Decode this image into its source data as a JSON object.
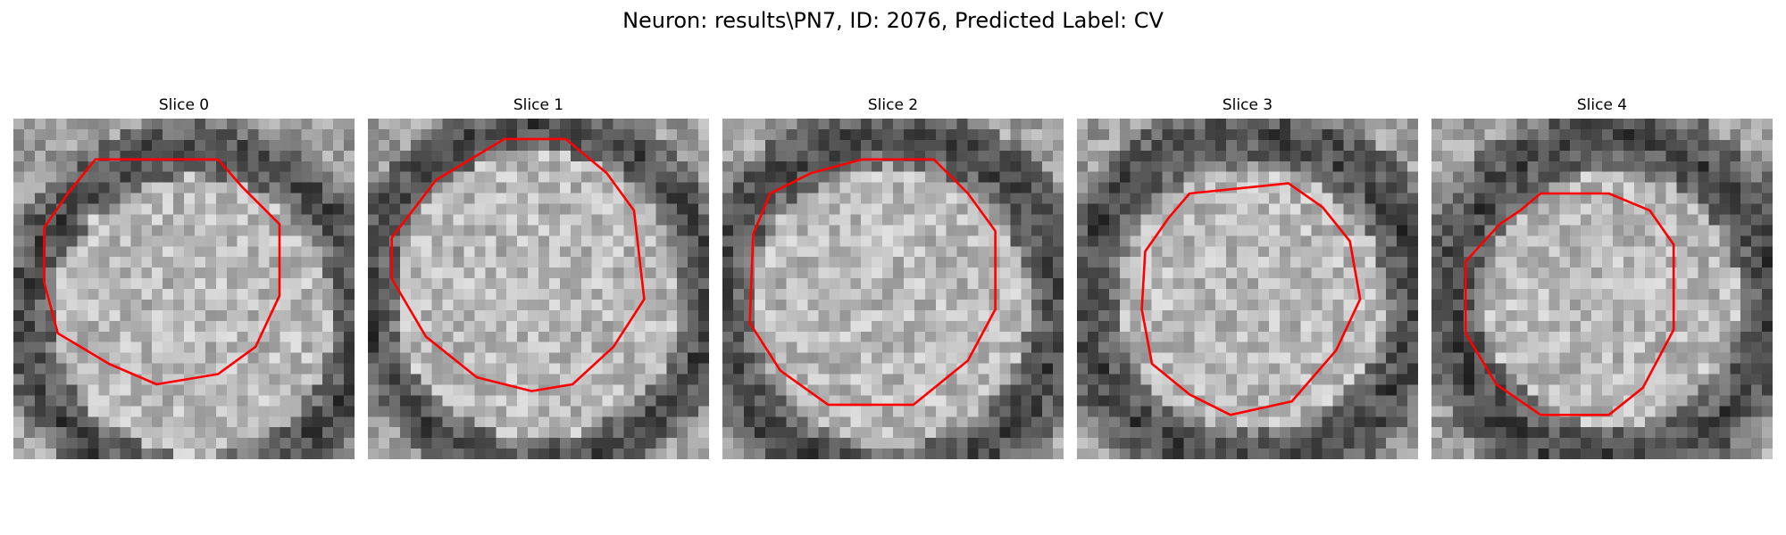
{
  "figure": {
    "title": "Neuron: results\\PN7, ID: 2076, Predicted Label: CV"
  },
  "slices": [
    {
      "label": "Slice 0",
      "contour_color": "#ff0000",
      "dark_ring": [
        0.53,
        0.58,
        0.58,
        0.41
      ],
      "outline": [
        [
          0.24,
          0.12
        ],
        [
          0.6,
          0.12
        ],
        [
          0.67,
          0.2
        ],
        [
          0.78,
          0.31
        ],
        [
          0.78,
          0.52
        ],
        [
          0.71,
          0.67
        ],
        [
          0.6,
          0.75
        ],
        [
          0.42,
          0.78
        ],
        [
          0.28,
          0.72
        ],
        [
          0.13,
          0.63
        ],
        [
          0.09,
          0.48
        ],
        [
          0.09,
          0.32
        ],
        [
          0.16,
          0.22
        ]
      ]
    },
    {
      "label": "Slice 1",
      "contour_color": "#ff0000",
      "dark_ring": [
        0.5,
        0.52,
        0.58,
        0.42
      ],
      "outline": [
        [
          0.4,
          0.06
        ],
        [
          0.58,
          0.06
        ],
        [
          0.7,
          0.16
        ],
        [
          0.78,
          0.27
        ],
        [
          0.81,
          0.53
        ],
        [
          0.72,
          0.67
        ],
        [
          0.6,
          0.78
        ],
        [
          0.48,
          0.8
        ],
        [
          0.32,
          0.76
        ],
        [
          0.17,
          0.64
        ],
        [
          0.07,
          0.47
        ],
        [
          0.07,
          0.35
        ],
        [
          0.2,
          0.18
        ]
      ]
    },
    {
      "label": "Slice 2",
      "contour_color": "#ff0000",
      "dark_ring": [
        0.49,
        0.55,
        0.6,
        0.41
      ],
      "outline": [
        [
          0.26,
          0.16
        ],
        [
          0.41,
          0.12
        ],
        [
          0.62,
          0.12
        ],
        [
          0.72,
          0.22
        ],
        [
          0.8,
          0.33
        ],
        [
          0.8,
          0.56
        ],
        [
          0.72,
          0.71
        ],
        [
          0.56,
          0.84
        ],
        [
          0.31,
          0.84
        ],
        [
          0.17,
          0.74
        ],
        [
          0.08,
          0.6
        ],
        [
          0.09,
          0.34
        ],
        [
          0.14,
          0.22
        ]
      ]
    },
    {
      "label": "Slice 3",
      "contour_color": "#ff0000",
      "dark_ring": [
        0.51,
        0.53,
        0.59,
        0.39
      ],
      "outline": [
        [
          0.33,
          0.22
        ],
        [
          0.62,
          0.19
        ],
        [
          0.72,
          0.26
        ],
        [
          0.8,
          0.36
        ],
        [
          0.83,
          0.53
        ],
        [
          0.76,
          0.68
        ],
        [
          0.63,
          0.83
        ],
        [
          0.45,
          0.87
        ],
        [
          0.33,
          0.81
        ],
        [
          0.22,
          0.72
        ],
        [
          0.19,
          0.56
        ],
        [
          0.2,
          0.39
        ],
        [
          0.27,
          0.29
        ]
      ]
    },
    {
      "label": "Slice 4",
      "contour_color": "#ff0000",
      "dark_ring": [
        0.53,
        0.53,
        0.58,
        0.37
      ],
      "outline": [
        [
          0.32,
          0.22
        ],
        [
          0.52,
          0.22
        ],
        [
          0.64,
          0.27
        ],
        [
          0.71,
          0.37
        ],
        [
          0.71,
          0.62
        ],
        [
          0.62,
          0.79
        ],
        [
          0.52,
          0.87
        ],
        [
          0.32,
          0.87
        ],
        [
          0.19,
          0.78
        ],
        [
          0.1,
          0.63
        ],
        [
          0.1,
          0.42
        ],
        [
          0.2,
          0.31
        ],
        [
          0.26,
          0.27
        ]
      ]
    }
  ]
}
